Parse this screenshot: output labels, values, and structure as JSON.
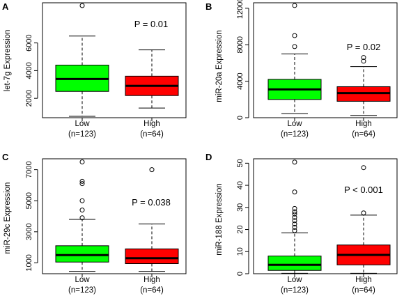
{
  "figure": {
    "panels": [
      {
        "letter": "A",
        "ylabel": "let-7g Expression",
        "pvalue": "P = 0.01",
        "yticks": [
          "2000",
          "4000",
          "6000"
        ]
      },
      {
        "letter": "B",
        "ylabel": "miR-20a Expression",
        "pvalue": "P = 0.02",
        "yticks": [
          "0",
          "4000",
          "8000",
          "12000"
        ]
      },
      {
        "letter": "C",
        "ylabel": "miR-29c Expression",
        "pvalue": "P = 0.038",
        "yticks": [
          "1000",
          "3000",
          "5000",
          "7000"
        ]
      },
      {
        "letter": "D",
        "ylabel": "miR-188 Expression",
        "pvalue": "P < 0.001",
        "yticks": [
          "0",
          "10",
          "20",
          "30",
          "40",
          "50"
        ]
      }
    ],
    "groups": [
      {
        "label": "Low",
        "n_label": "(n=123)"
      },
      {
        "label": "High",
        "n_label": "(n=64)"
      }
    ]
  },
  "chart_data": [
    {
      "type": "boxplot",
      "panel": "A",
      "ylabel": "let-7g Expression",
      "ylim": [
        600,
        8900
      ],
      "yticks": [
        2000,
        4000,
        6000
      ],
      "annotation": "P = 0.01",
      "categories": [
        "Low (n=123)",
        "High (n=64)"
      ],
      "colors": [
        "#00ff00",
        "#ff0000"
      ],
      "boxes": [
        {
          "whisker_low": 700,
          "q1": 2500,
          "median": 3400,
          "q3": 4400,
          "whisker_high": 6500,
          "outliers": [
            8700
          ]
        },
        {
          "whisker_low": 1300,
          "q1": 2200,
          "median": 2900,
          "q3": 3600,
          "whisker_high": 5500,
          "outliers": []
        }
      ]
    },
    {
      "type": "boxplot",
      "panel": "B",
      "ylabel": "miR-20a Expression",
      "ylim": [
        0,
        12600
      ],
      "yticks": [
        0,
        4000,
        8000,
        12000
      ],
      "annotation": "P = 0.02",
      "categories": [
        "Low (n=123)",
        "High (n=64)"
      ],
      "colors": [
        "#00ff00",
        "#ff0000"
      ],
      "boxes": [
        {
          "whisker_low": 450,
          "q1": 2000,
          "median": 3100,
          "q3": 4200,
          "whisker_high": 7000,
          "outliers": [
            7800,
            9000,
            12300
          ]
        },
        {
          "whisker_low": 250,
          "q1": 1800,
          "median": 2700,
          "q3": 3400,
          "whisker_high": 5600,
          "outliers": [
            6200,
            6600
          ]
        }
      ]
    },
    {
      "type": "boxplot",
      "panel": "C",
      "ylabel": "miR-29c Expression",
      "ylim": [
        300,
        7700
      ],
      "yticks": [
        1000,
        3000,
        5000,
        7000
      ],
      "annotation": "P = 0.038",
      "categories": [
        "Low (n=123)",
        "High (n=64)"
      ],
      "colors": [
        "#00ff00",
        "#ff0000"
      ],
      "boxes": [
        {
          "whisker_low": 450,
          "q1": 1050,
          "median": 1500,
          "q3": 2100,
          "whisker_high": 3800,
          "outliers": [
            3900,
            4400,
            5000,
            6100,
            6250,
            7500
          ]
        },
        {
          "whisker_low": 450,
          "q1": 950,
          "median": 1300,
          "q3": 1900,
          "whisker_high": 3500,
          "outliers": [
            7000
          ]
        }
      ]
    },
    {
      "type": "boxplot",
      "panel": "D",
      "ylabel": "miR-188 Expression",
      "ylim": [
        0,
        52
      ],
      "yticks": [
        0,
        10,
        20,
        30,
        40,
        50
      ],
      "annotation": "P < 0.001",
      "categories": [
        "Low (n=123)",
        "High (n=64)"
      ],
      "colors": [
        "#00ff00",
        "#ff0000"
      ],
      "boxes": [
        {
          "whisker_low": 0.2,
          "q1": 1.5,
          "median": 4,
          "q3": 8,
          "whisker_high": 18.5,
          "outliers": [
            19.5,
            21,
            22.5,
            24,
            25.5,
            27,
            28,
            29.5,
            37,
            50.5
          ]
        },
        {
          "whisker_low": 0.2,
          "q1": 4,
          "median": 8.5,
          "q3": 13,
          "whisker_high": 26.5,
          "outliers": [
            27.5,
            48
          ]
        }
      ]
    }
  ]
}
